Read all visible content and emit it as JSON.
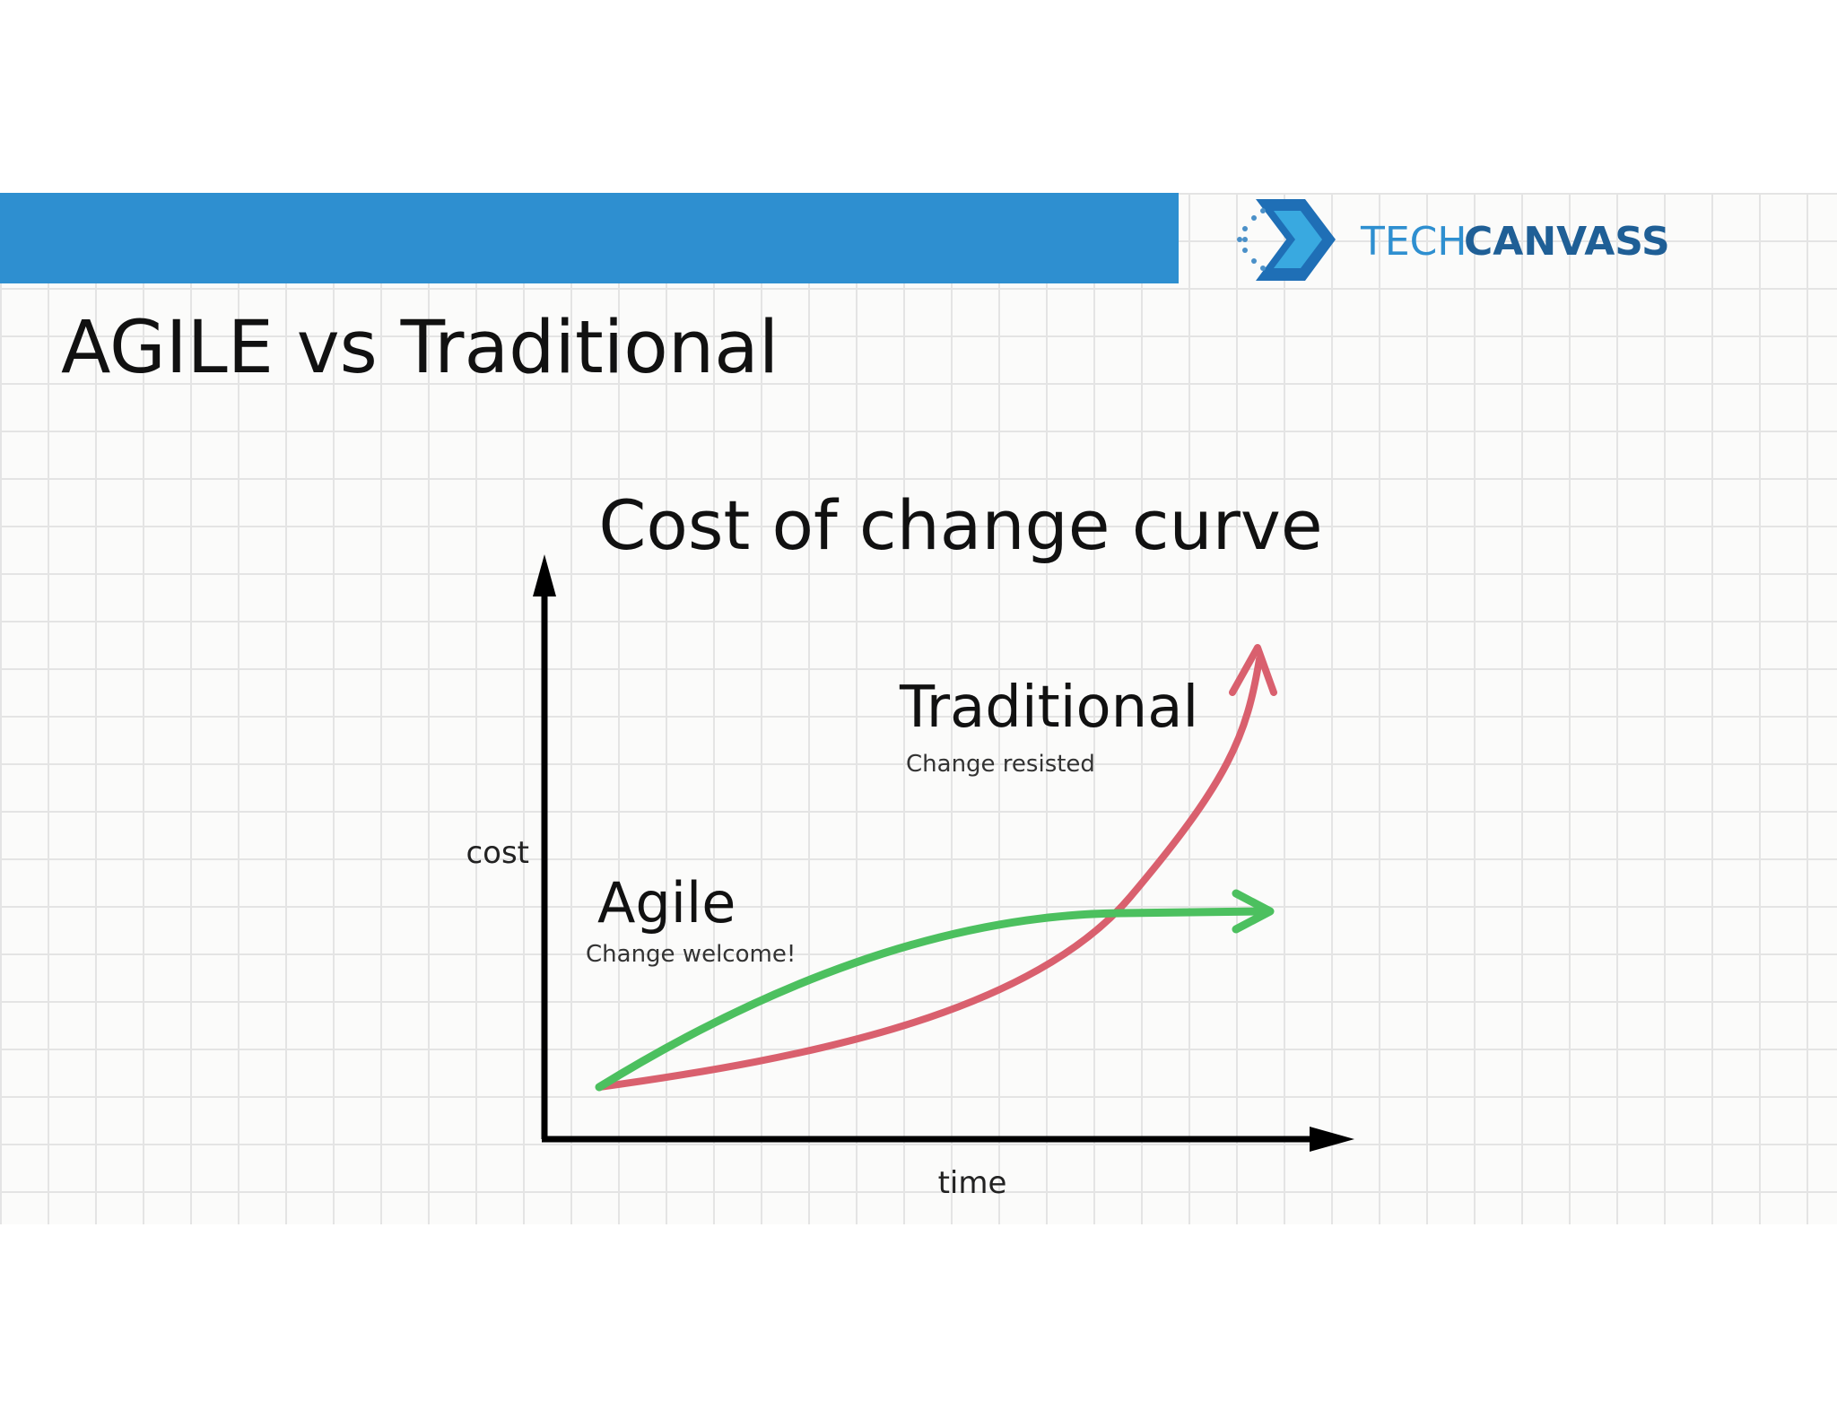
{
  "header": {
    "logo_tech": "TECH",
    "logo_canvass": "CANVASS"
  },
  "slide": {
    "title": "AGILE vs Traditional"
  },
  "diagram": {
    "title": "Cost of change curve",
    "y_label": "cost",
    "x_label": "time",
    "traditional": {
      "label": "Traditional",
      "note": "Change resisted"
    },
    "agile": {
      "label": "Agile",
      "note": "Change welcome!"
    }
  }
}
